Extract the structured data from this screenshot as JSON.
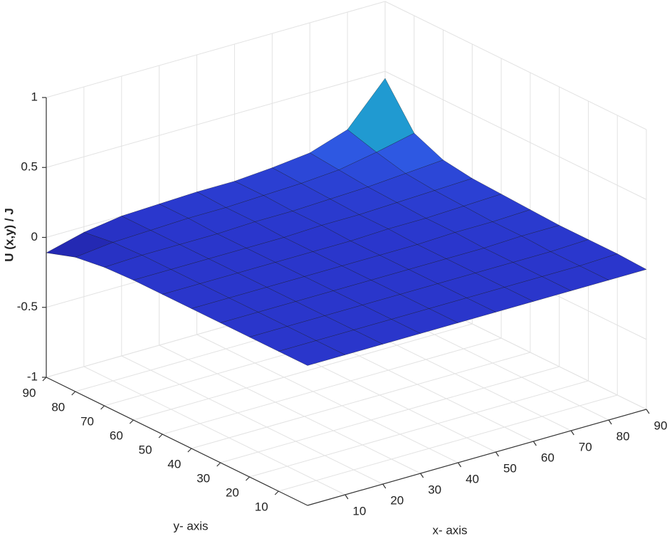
{
  "chart_data": {
    "type": "surface",
    "x": [
      0,
      10,
      20,
      30,
      40,
      50,
      60,
      70,
      80,
      90
    ],
    "y": [
      0,
      10,
      20,
      30,
      40,
      50,
      60,
      70,
      80,
      90
    ],
    "z": [
      [
        0,
        0,
        0,
        0,
        0,
        0,
        0,
        0,
        0,
        0
      ],
      [
        0,
        0,
        0,
        0,
        0,
        0,
        0,
        0,
        0,
        0.01
      ],
      [
        0,
        0,
        0,
        0,
        0,
        0,
        0,
        0,
        0,
        0.01
      ],
      [
        0,
        0,
        0,
        0,
        0,
        0,
        0,
        0,
        0.01,
        0.01
      ],
      [
        0,
        0,
        0,
        0,
        0,
        0,
        0,
        0.01,
        0.01,
        0.02
      ],
      [
        0,
        0,
        0,
        0,
        0,
        0,
        0.01,
        0.01,
        0.02,
        0.03
      ],
      [
        0,
        0,
        0,
        0,
        0,
        0.01,
        0.01,
        0.02,
        0.03,
        0.04
      ],
      [
        -0.01,
        0,
        0,
        0,
        0.01,
        0.01,
        0.02,
        0.03,
        0.05,
        0.07
      ],
      [
        -0.04,
        -0.01,
        0,
        0.01,
        0.01,
        0.02,
        0.03,
        0.05,
        0.1,
        0.16
      ],
      [
        -0.11,
        -0.04,
        0,
        0.01,
        0.02,
        0.02,
        0.04,
        0.07,
        0.16,
        0.45
      ]
    ],
    "xlim": [
      0,
      90
    ],
    "ylim": [
      0,
      90
    ],
    "zlim": [
      -1,
      1
    ],
    "xticks": [
      10,
      20,
      30,
      40,
      50,
      60,
      70,
      80,
      90
    ],
    "yticks": [
      10,
      20,
      30,
      40,
      50,
      60,
      70,
      80,
      90
    ],
    "zticks": [
      -1,
      -0.5,
      0,
      0.5,
      1
    ],
    "xlabel": "x- axis",
    "ylabel": "y- axis",
    "zlabel": "U (x,y) / J",
    "colormap": [
      "#1c1a96",
      "#2a36cc",
      "#2f5fe6",
      "#1f9fcf",
      "#2ac08e",
      "#86d24e"
    ],
    "grid": true
  }
}
